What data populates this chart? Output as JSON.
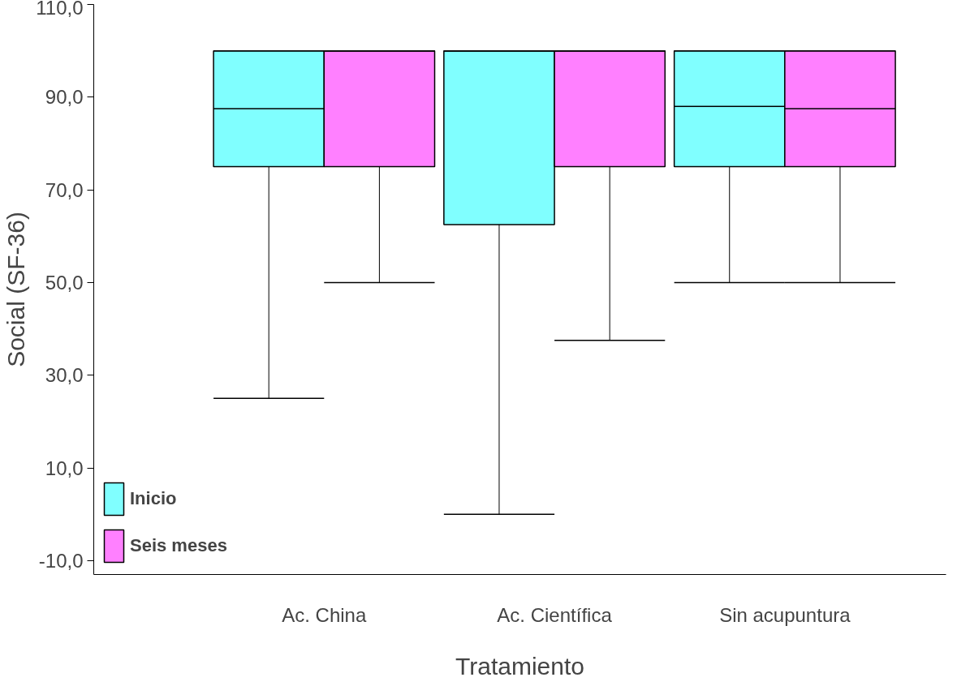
{
  "chart_data": {
    "type": "box",
    "xlabel": "Tratamiento",
    "ylabel": "Social (SF-36)",
    "categories": [
      "Ac. China",
      "Ac. Científica",
      "Sin acupuntura"
    ],
    "series": [
      {
        "name": "Inicio",
        "color": "#80ffff",
        "boxes": [
          {
            "low": 25,
            "q1": 75,
            "median": 87.5,
            "q3": 100,
            "high": 100
          },
          {
            "low": 0,
            "q1": 62.5,
            "median": 100,
            "q3": 100,
            "high": 100
          },
          {
            "low": 50,
            "q1": 75,
            "median": 88,
            "q3": 100,
            "high": 100
          }
        ]
      },
      {
        "name": "Seis meses",
        "color": "#ff80ff",
        "boxes": [
          {
            "low": 50,
            "q1": 75,
            "median": 100,
            "q3": 100,
            "high": 100
          },
          {
            "low": 37.5,
            "q1": 75,
            "median": 100,
            "q3": 100,
            "high": 100
          },
          {
            "low": 50,
            "q1": 75,
            "median": 87.5,
            "q3": 100,
            "high": 100
          }
        ]
      }
    ],
    "ylim": [
      -13,
      110
    ],
    "yticks": [
      {
        "value": -10,
        "label": "-10,0"
      },
      {
        "value": 10,
        "label": "10,0"
      },
      {
        "value": 30,
        "label": "30,0"
      },
      {
        "value": 50,
        "label": "50,0"
      },
      {
        "value": 70,
        "label": "70,0"
      },
      {
        "value": 90,
        "label": "90,0"
      },
      {
        "value": 110,
        "label": "110,0"
      }
    ],
    "grid": false,
    "legend": "bottom left"
  }
}
